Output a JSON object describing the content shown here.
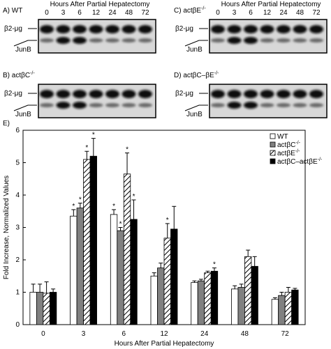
{
  "panels": [
    {
      "label": "A) WT",
      "header": "Hours After Partial Hepatectomy",
      "hours": [
        "0",
        "3",
        "6",
        "12",
        "24",
        "48",
        "72"
      ],
      "bands": [
        "β2-μg",
        "JunB"
      ]
    },
    {
      "label": "C) actβE",
      "label_sup": "-/-",
      "header": "Hours After Partial Hepatectomy",
      "hours": [
        "0",
        "3",
        "6",
        "12",
        "24",
        "48",
        "72"
      ],
      "bands": [
        "β2-μg",
        "JunB"
      ]
    },
    {
      "label": "B) actβC",
      "label_sup": "-/-",
      "bands": [
        "β2-μg",
        "JunB"
      ]
    },
    {
      "label": "D) actβC–βE",
      "label_sup": "-/-",
      "bands": [
        "β2-μg",
        "JunB"
      ]
    }
  ],
  "chart_data": {
    "type": "bar",
    "title": "E)",
    "xlabel": "Hours After Partial Hepatectomy",
    "ylabel": "Fold Increase, Normalized Values",
    "categories": [
      "0",
      "3",
      "6",
      "12",
      "24",
      "48",
      "72"
    ],
    "ylim": [
      0,
      6
    ],
    "yticks": [
      0,
      1,
      2,
      3,
      4,
      5,
      6
    ],
    "series": [
      {
        "name": "WT",
        "color": "#ffffff",
        "values": [
          1.0,
          3.35,
          3.4,
          1.5,
          1.3,
          1.1,
          0.78
        ],
        "errors": [
          0.25,
          0.2,
          0.15,
          0.1,
          0.05,
          0.1,
          0.05
        ],
        "significance": [
          null,
          "*",
          "*",
          null,
          null,
          null,
          null
        ]
      },
      {
        "name": "actβC",
        "name_sup": "-/-",
        "color": "#808080",
        "values": [
          1.0,
          3.6,
          2.9,
          1.75,
          1.35,
          1.15,
          0.9
        ],
        "errors": [
          0.25,
          0.15,
          0.1,
          0.15,
          0.05,
          0.1,
          0.1
        ],
        "significance": [
          null,
          "*",
          "*",
          null,
          null,
          null,
          null
        ]
      },
      {
        "name": "actβE",
        "name_sup": "-/-",
        "color": "#ffffff",
        "hatch": true,
        "values": [
          0.97,
          5.1,
          4.65,
          2.67,
          1.6,
          2.1,
          1.0
        ],
        "errors": [
          0.35,
          0.25,
          0.65,
          0.45,
          0.05,
          0.2,
          0.15
        ],
        "significance": [
          null,
          "*",
          "*",
          "*",
          null,
          null,
          null
        ]
      },
      {
        "name": "actβC–actβE",
        "name_sup": "-/-",
        "color": "#000000",
        "values": [
          1.0,
          5.2,
          3.25,
          2.95,
          1.65,
          1.8,
          1.07
        ],
        "errors": [
          0.1,
          0.55,
          0.6,
          0.7,
          0.1,
          0.3,
          0.05
        ],
        "significance": [
          null,
          "*",
          "*",
          null,
          "*",
          null,
          null
        ]
      }
    ]
  }
}
